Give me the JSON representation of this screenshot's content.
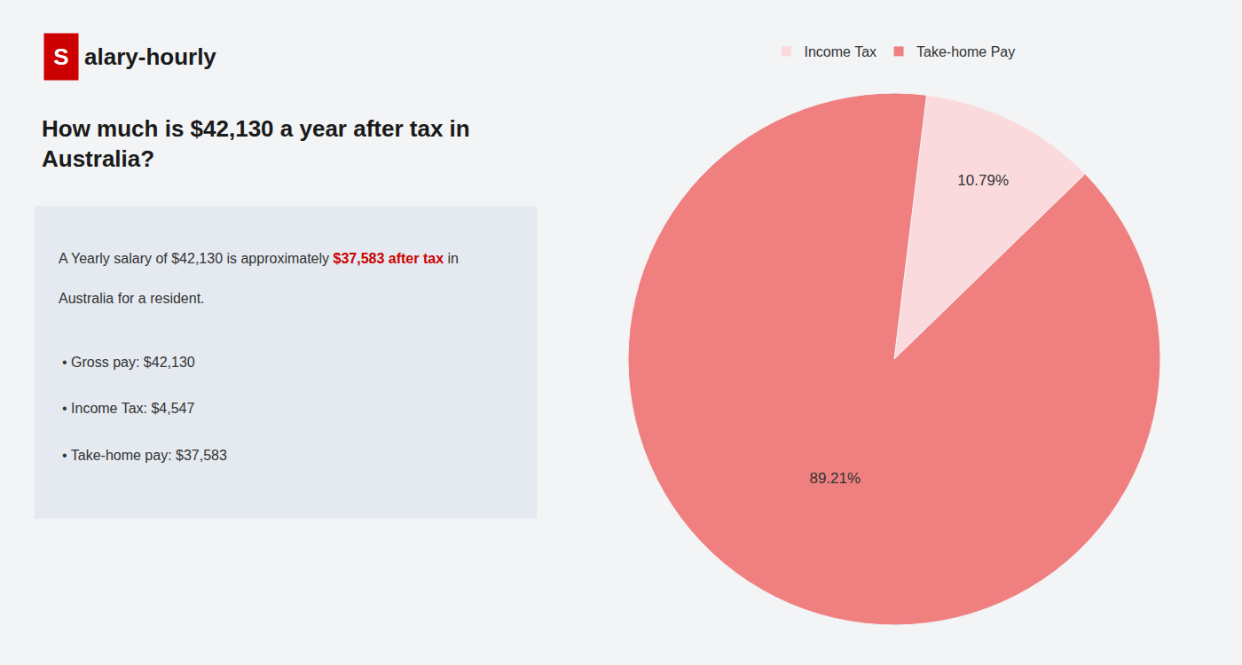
{
  "chart_data": {
    "type": "pie",
    "title": "How much is $42,130 a year after tax in\nAustralia?",
    "categories": [
      "Income Tax",
      "Take-home Pay"
    ],
    "values": [
      10.79,
      89.21
    ],
    "value_labels": [
      "10.79%",
      "89.21%"
    ],
    "colors": [
      "#fadadd",
      "#f08080"
    ],
    "data_labels": true,
    "legend": "top",
    "annotations": [
      "S",
      "alary-hourly",
      [
        {
          "text": "A Yearly salary of $42,130 is approximately "
        },
        {
          "text": "$37,583 after tax",
          "color": "#cc0000"
        },
        {
          "text": " in"
        }
      ],
      "Australia for a resident.",
      "• Gross pay: $42,130",
      "• Income Tax: $4,547",
      "• Take-home pay: $37,583"
    ]
  }
}
